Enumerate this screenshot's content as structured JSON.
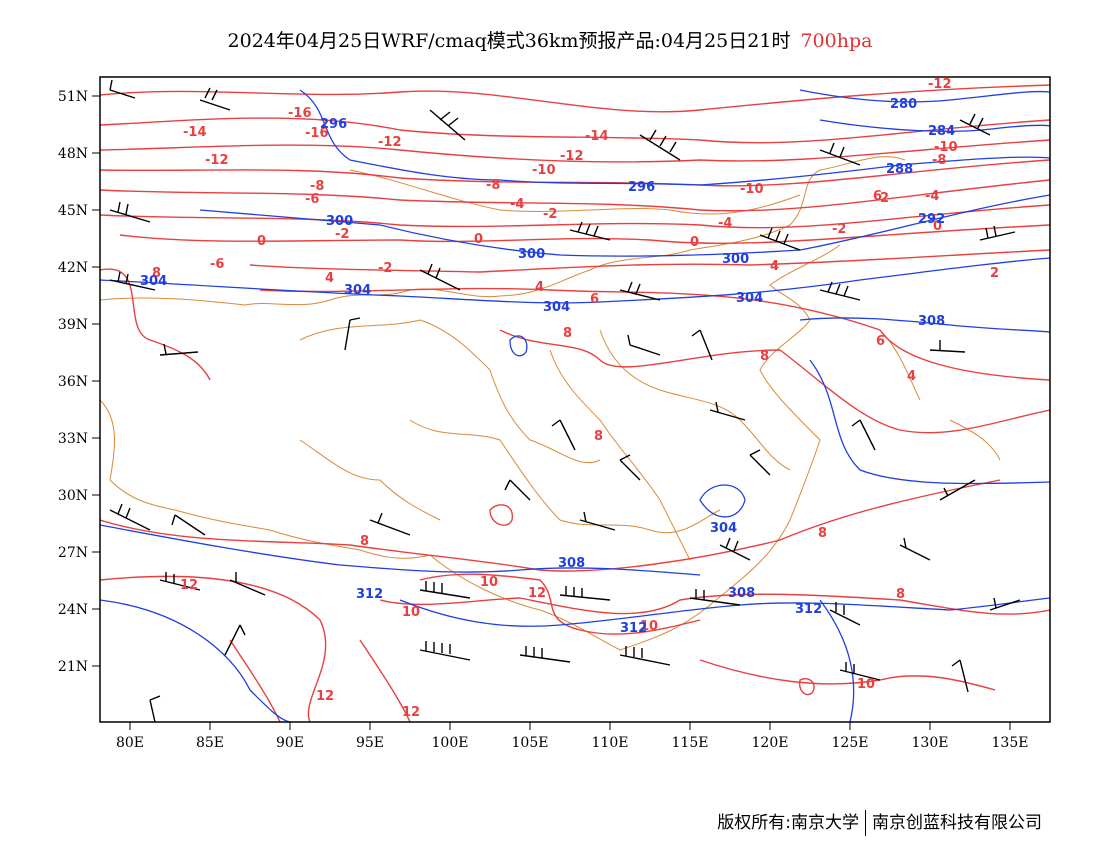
{
  "title": {
    "main": "2024年04月25日WRF/cmaq模式36km预报产品:04月25日21时",
    "level": "700hpa"
  },
  "colors": {
    "temperature": "#e84040",
    "height": "#1f3fe0",
    "border": "#d98a3a",
    "wind": "#000000"
  },
  "axes": {
    "lat_labels": [
      "51N",
      "48N",
      "45N",
      "42N",
      "39N",
      "36N",
      "33N",
      "30N",
      "27N",
      "24N",
      "21N"
    ],
    "lon_labels": [
      "80E",
      "85E",
      "90E",
      "95E",
      "100E",
      "105E",
      "110E",
      "115E",
      "120E",
      "125E",
      "130E",
      "135E"
    ]
  },
  "temperature_labels": [
    "-16",
    "-16",
    "-14",
    "-14",
    "-12",
    "-12",
    "-12",
    "-12",
    "-10",
    "-10",
    "-10",
    "-8",
    "-8",
    "-8",
    "-6",
    "-6",
    "-4",
    "-4",
    "-4",
    "-2",
    "-2",
    "-2",
    "-2",
    "0",
    "0",
    "0",
    "0",
    "2",
    "2",
    "4",
    "4",
    "4",
    "4",
    "6",
    "6",
    "6",
    "8",
    "8",
    "8",
    "8",
    "8",
    "8",
    "8",
    "10",
    "10",
    "10",
    "10",
    "12",
    "12",
    "12",
    "12"
  ],
  "height_labels": [
    "296",
    "280",
    "284",
    "288",
    "296",
    "292",
    "300",
    "300",
    "300",
    "304",
    "304",
    "304",
    "304",
    "308",
    "308",
    "308",
    "304",
    "312",
    "312",
    "312"
  ],
  "footer": {
    "left": "版权所有:南京大学",
    "right": "南京创蓝科技有限公司"
  }
}
